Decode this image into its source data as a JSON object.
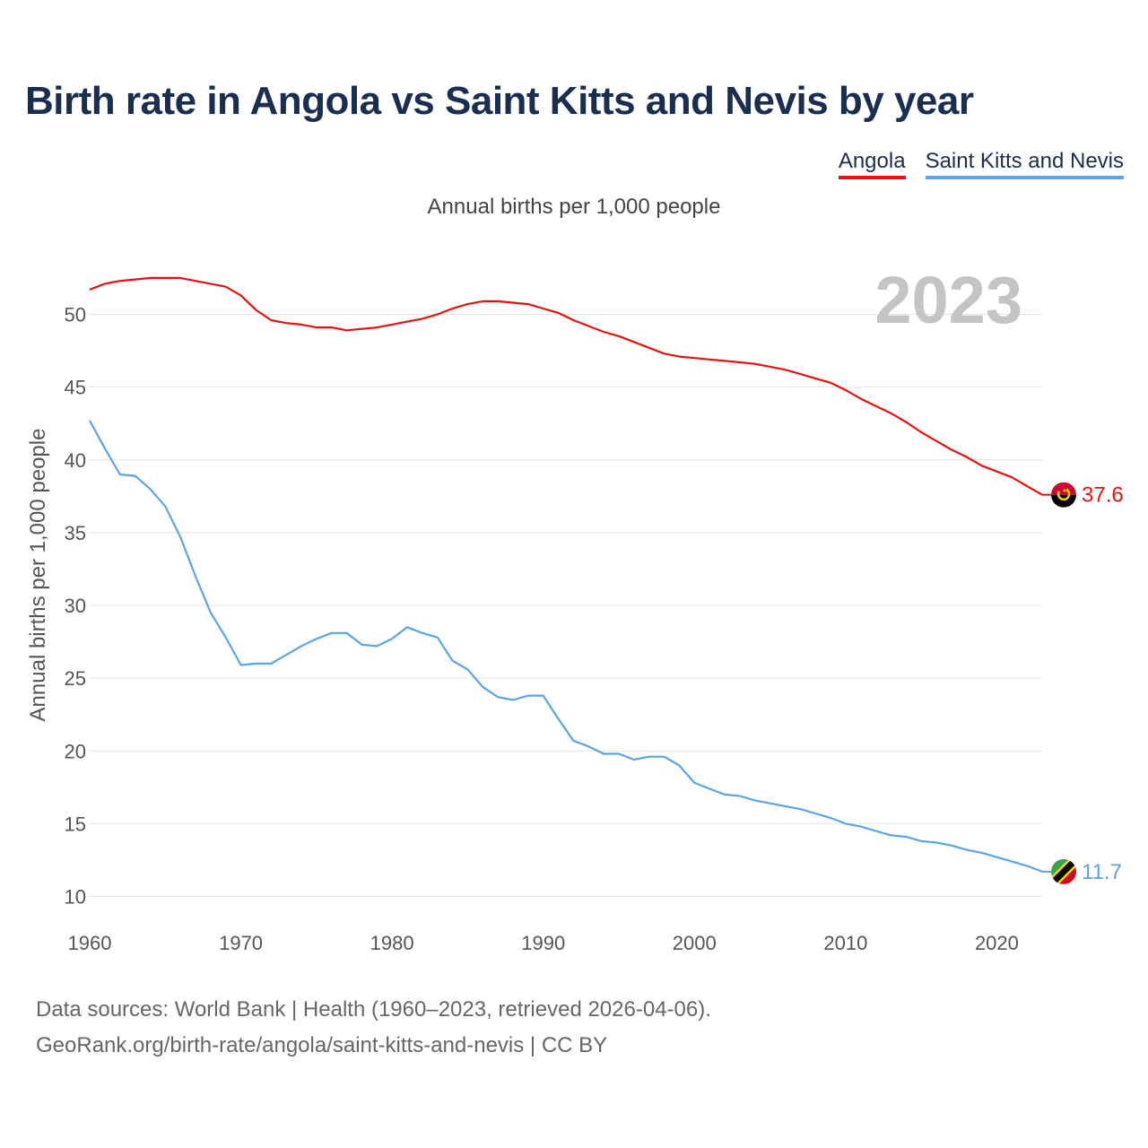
{
  "title": "Birth rate in Angola vs Saint Kitts and Nevis by year",
  "legend": [
    {
      "label": "Angola",
      "color": "#e8110f"
    },
    {
      "label": "Saint Kitts and Nevis",
      "color": "#5ba4e5"
    }
  ],
  "subtitle": "Annual births per 1,000 people",
  "year_watermark": "2023",
  "footer": {
    "line1": "Data sources: World Bank | Health (1960–2023, retrieved 2026-04-06).",
    "line2": "GeoRank.org/birth-rate/angola/saint-kitts-and-nevis | CC BY"
  },
  "chart_data": {
    "type": "line",
    "title": "Birth rate in Angola vs Saint Kitts and Nevis by year",
    "xlabel": "",
    "ylabel": "Annual births per 1,000 people",
    "xlim": [
      1960,
      2023
    ],
    "ylim": [
      10,
      53
    ],
    "x_ticks": [
      1960,
      1970,
      1980,
      1990,
      2000,
      2010,
      2020
    ],
    "y_ticks": [
      10,
      15,
      20,
      25,
      30,
      35,
      40,
      45,
      50
    ],
    "grid": true,
    "legend_position": "top-right",
    "series": [
      {
        "name": "Angola",
        "color": "#e8110f",
        "end_label": "37.6",
        "x": [
          1960,
          1961,
          1962,
          1963,
          1964,
          1965,
          1966,
          1967,
          1968,
          1969,
          1970,
          1971,
          1972,
          1973,
          1974,
          1975,
          1976,
          1977,
          1978,
          1979,
          1980,
          1981,
          1982,
          1983,
          1984,
          1985,
          1986,
          1987,
          1988,
          1989,
          1990,
          1991,
          1992,
          1993,
          1994,
          1995,
          1996,
          1997,
          1998,
          1999,
          2000,
          2001,
          2002,
          2003,
          2004,
          2005,
          2006,
          2007,
          2008,
          2009,
          2010,
          2011,
          2012,
          2013,
          2014,
          2015,
          2016,
          2017,
          2018,
          2019,
          2020,
          2021,
          2022,
          2023
        ],
        "values": [
          51.7,
          52.1,
          52.3,
          52.4,
          52.5,
          52.5,
          52.5,
          52.3,
          52.1,
          51.9,
          51.3,
          50.3,
          49.6,
          49.4,
          49.3,
          49.1,
          49.1,
          48.9,
          49.0,
          49.1,
          49.3,
          49.5,
          49.7,
          50.0,
          50.4,
          50.7,
          50.9,
          50.9,
          50.8,
          50.7,
          50.4,
          50.1,
          49.6,
          49.2,
          48.8,
          48.5,
          48.1,
          47.7,
          47.3,
          47.1,
          47.0,
          46.9,
          46.8,
          46.7,
          46.6,
          46.4,
          46.2,
          45.9,
          45.6,
          45.3,
          44.8,
          44.2,
          43.7,
          43.2,
          42.6,
          41.9,
          41.3,
          40.7,
          40.2,
          39.6,
          39.2,
          38.8,
          38.2,
          37.6
        ]
      },
      {
        "name": "Saint Kitts and Nevis",
        "color": "#5ba4e5",
        "end_label": "11.7",
        "x": [
          1960,
          1961,
          1962,
          1963,
          1964,
          1965,
          1966,
          1967,
          1968,
          1969,
          1970,
          1971,
          1972,
          1973,
          1974,
          1975,
          1976,
          1977,
          1978,
          1979,
          1980,
          1981,
          1982,
          1983,
          1984,
          1985,
          1986,
          1987,
          1988,
          1989,
          1990,
          1991,
          1992,
          1993,
          1994,
          1995,
          1996,
          1997,
          1998,
          1999,
          2000,
          2001,
          2002,
          2003,
          2004,
          2005,
          2006,
          2007,
          2008,
          2009,
          2010,
          2011,
          2012,
          2013,
          2014,
          2015,
          2016,
          2017,
          2018,
          2019,
          2020,
          2021,
          2022,
          2023
        ],
        "values": [
          42.7,
          40.8,
          39.0,
          38.9,
          38.0,
          36.8,
          34.7,
          32.0,
          29.5,
          27.8,
          25.9,
          26.0,
          26.0,
          26.6,
          27.2,
          27.7,
          28.1,
          28.1,
          27.3,
          27.2,
          27.7,
          28.5,
          28.1,
          27.8,
          26.2,
          25.6,
          24.4,
          23.7,
          23.5,
          23.8,
          23.8,
          22.2,
          20.7,
          20.3,
          19.8,
          19.8,
          19.4,
          19.6,
          19.6,
          19.0,
          17.8,
          17.4,
          17.0,
          16.9,
          16.6,
          16.4,
          16.2,
          16.0,
          15.7,
          15.4,
          15.0,
          14.8,
          14.5,
          14.2,
          14.1,
          13.8,
          13.7,
          13.5,
          13.2,
          13.0,
          12.7,
          12.4,
          12.1,
          11.7
        ]
      }
    ]
  }
}
